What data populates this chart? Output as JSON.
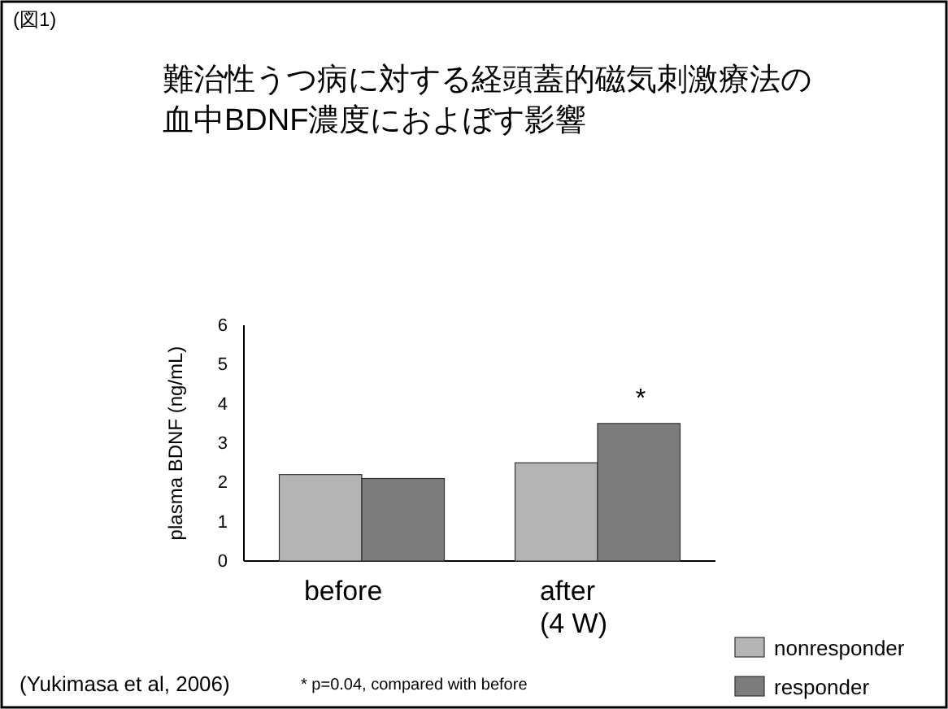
{
  "chart_data": {
    "type": "bar",
    "title": "難治性うつ病に対する経頭蓋的磁気刺激療法の血中BDNF濃度におよぼす影響",
    "ylabel": "plasma BDNF (ng/mL)",
    "categories": [
      "before",
      "after\n(4 W)"
    ],
    "series": [
      {
        "name": "nonresponder",
        "color": "#b4b4b4",
        "values": [
          2.2,
          2.5
        ]
      },
      {
        "name": "responder",
        "color": "#7c7c7c",
        "values": [
          2.1,
          3.5
        ]
      }
    ],
    "ylim": [
      0,
      6
    ],
    "yticks": [
      0,
      1,
      2,
      3,
      4,
      5,
      6
    ],
    "grid": false,
    "legend": "bottom right",
    "annotations": [
      "(図1)",
      "*",
      "(Yukimasa et al, 2006)",
      "* p=0.04, compared with before"
    ]
  }
}
